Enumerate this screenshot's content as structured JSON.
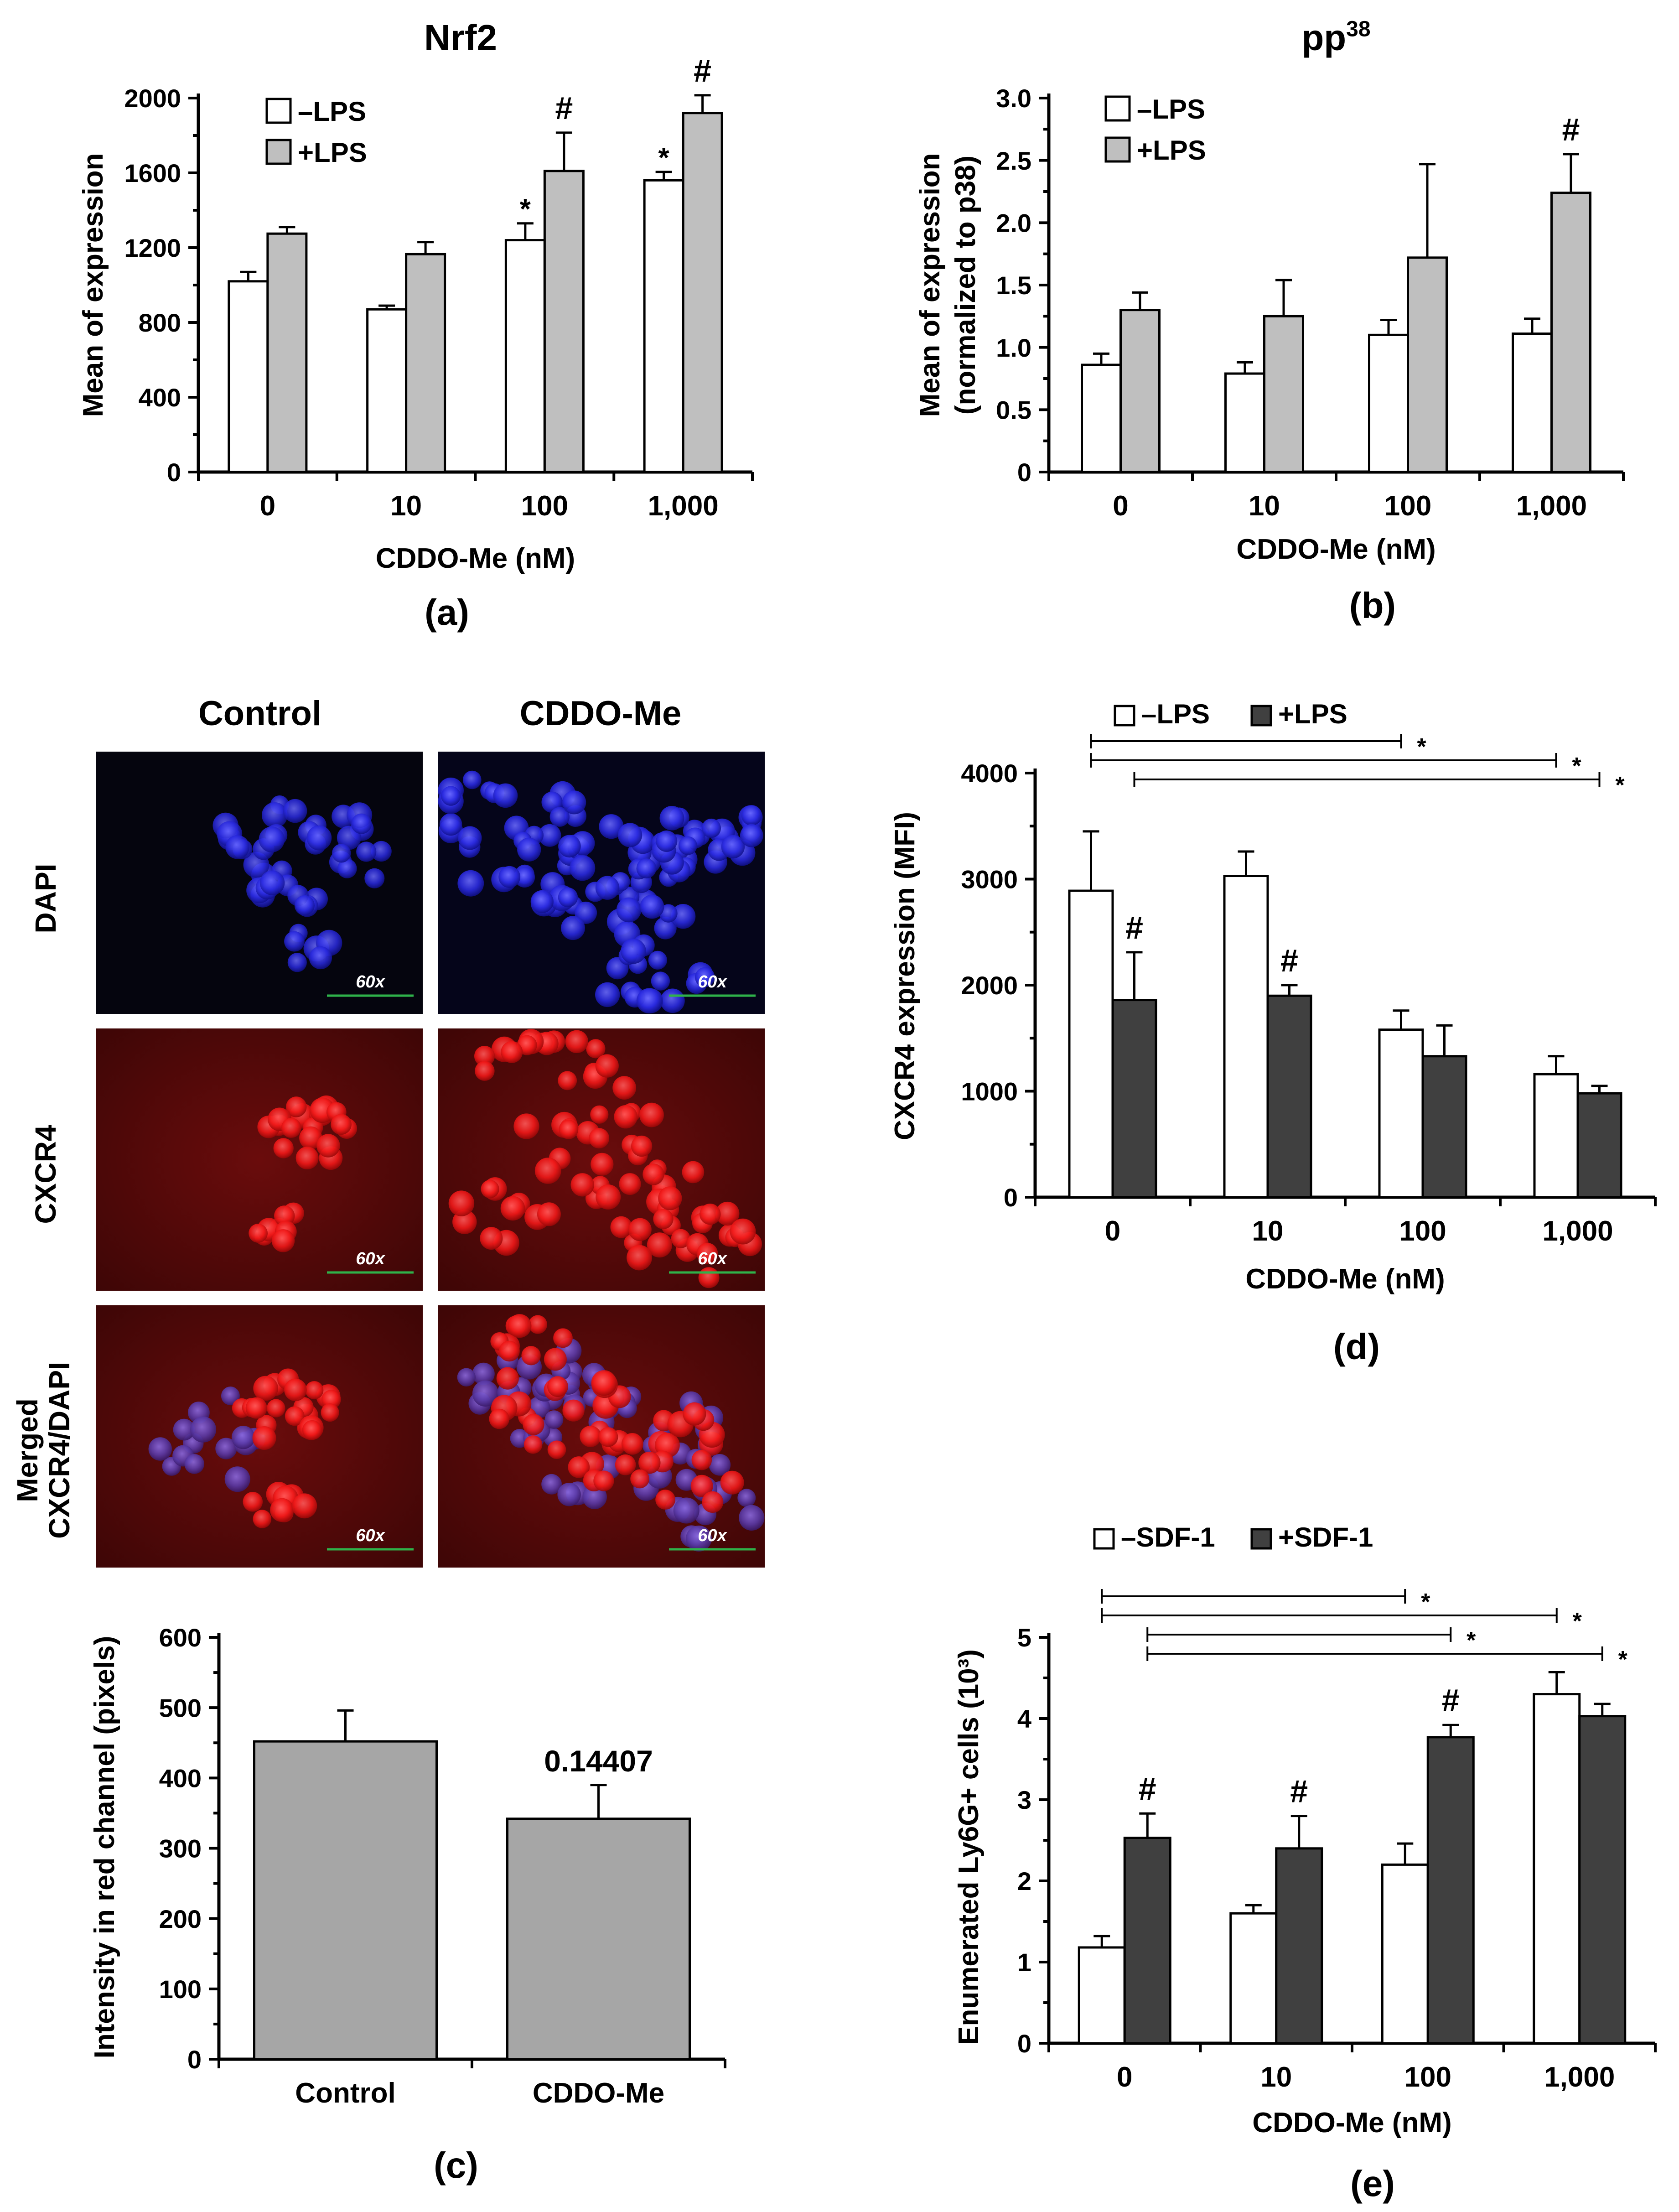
{
  "panels": [
    {
      "id": "a",
      "type": "bar",
      "panel_label": "(a)",
      "title": "Nrf2",
      "title_sup": "",
      "xlabel": "CDDO-Me (nM)",
      "ylabel": [
        "Mean of expression"
      ],
      "categories": [
        "0",
        "10",
        "100",
        "1,000"
      ],
      "yticks": [
        0,
        400,
        800,
        1200,
        1600,
        2000
      ],
      "ylim": [
        0,
        2000
      ],
      "legend": {
        "placement": "top-left",
        "style": "stacked"
      },
      "series": [
        {
          "name": "–LPS",
          "color": "#ffffff",
          "values": [
            1020,
            870,
            1240,
            1560
          ],
          "errors": [
            50,
            20,
            90,
            45
          ],
          "annotations": [
            "",
            "",
            "*",
            "*"
          ]
        },
        {
          "name": "+LPS",
          "color": "#bfbfbf",
          "values": [
            1275,
            1165,
            1610,
            1920
          ],
          "errors": [
            35,
            65,
            205,
            95
          ],
          "annotations": [
            "",
            "",
            "#",
            "#"
          ]
        }
      ]
    },
    {
      "id": "b",
      "type": "bar",
      "panel_label": "(b)",
      "title": "pp",
      "title_sup": "38",
      "xlabel": "CDDO-Me (nM)",
      "ylabel": [
        "Mean of expression",
        "(normalized to p38)"
      ],
      "categories": [
        "0",
        "10",
        "100",
        "1,000"
      ],
      "yticks": [
        0,
        0.5,
        1.0,
        1.5,
        2.0,
        2.5,
        3.0
      ],
      "ylim": [
        0,
        3.0
      ],
      "ytick_labels": [
        "0",
        "0.5",
        "1.0",
        "1.5",
        "2.0",
        "2.5",
        "3.0"
      ],
      "legend": {
        "placement": "top-left",
        "style": "stacked"
      },
      "series": [
        {
          "name": "–LPS",
          "color": "#ffffff",
          "values": [
            0.86,
            0.79,
            1.1,
            1.11
          ],
          "errors": [
            0.09,
            0.09,
            0.12,
            0.12
          ],
          "annotations": [
            "",
            "",
            "",
            ""
          ]
        },
        {
          "name": "+LPS",
          "color": "#bfbfbf",
          "values": [
            1.3,
            1.25,
            1.72,
            2.24
          ],
          "errors": [
            0.14,
            0.29,
            0.75,
            0.31
          ],
          "annotations": [
            "",
            "",
            "",
            "#"
          ]
        }
      ]
    },
    {
      "id": "c",
      "type": "bar",
      "panel_label": "(c)",
      "title": "",
      "title_sup": "",
      "xlabel": "",
      "ylabel": [
        "Intensity in red channel (pixels)"
      ],
      "categories": [
        "Control",
        "CDDO-Me"
      ],
      "yticks": [
        0,
        100,
        200,
        300,
        400,
        500,
        600
      ],
      "ylim": [
        0,
        600
      ],
      "legend": null,
      "series": [
        {
          "name": "",
          "color": "#a6a6a6",
          "values": [
            452,
            342
          ],
          "errors": [
            44,
            48
          ],
          "annotations": [
            "",
            "0.14407"
          ]
        }
      ]
    },
    {
      "id": "d",
      "type": "bar",
      "panel_label": "(d)",
      "title": "",
      "title_sup": "",
      "xlabel": "CDDO-Me (nM)",
      "ylabel": [
        "CXCR4 expression (MFI)"
      ],
      "categories": [
        "0",
        "10",
        "100",
        "1,000"
      ],
      "yticks": [
        0,
        1000,
        2000,
        3000,
        4000
      ],
      "ylim": [
        0,
        4000
      ],
      "legend": {
        "placement": "top",
        "style": "inline"
      },
      "series": [
        {
          "name": "–LPS",
          "color": "#ffffff",
          "values": [
            2890,
            3030,
            1580,
            1160
          ],
          "errors": [
            560,
            230,
            180,
            170
          ],
          "annotations": [
            "",
            "",
            "",
            ""
          ]
        },
        {
          "name": "+LPS",
          "color": "#404040",
          "values": [
            1860,
            1900,
            1330,
            980
          ],
          "errors": [
            450,
            100,
            290,
            70
          ],
          "annotations": [
            "#",
            "#",
            "",
            ""
          ]
        }
      ],
      "brackets": [
        {
          "from": [
            0,
            0
          ],
          "to": [
            2,
            0
          ],
          "label": "*"
        },
        {
          "from": [
            0,
            0
          ],
          "to": [
            3,
            0
          ],
          "label": "*"
        },
        {
          "from": [
            0,
            1
          ],
          "to": [
            3,
            1
          ],
          "label": "*"
        }
      ]
    },
    {
      "id": "e",
      "type": "bar",
      "panel_label": "(e)",
      "title": "",
      "title_sup": "",
      "xlabel": "CDDO-Me (nM)",
      "ylabel": [
        "Enumerated Ly6G+ cells (10³)"
      ],
      "categories": [
        "0",
        "10",
        "100",
        "1,000"
      ],
      "yticks": [
        0,
        1,
        2,
        3,
        4,
        5
      ],
      "ylim": [
        0,
        5
      ],
      "legend": {
        "placement": "top",
        "style": "inline"
      },
      "series": [
        {
          "name": "–SDF-1",
          "color": "#ffffff",
          "values": [
            1.18,
            1.6,
            2.2,
            4.3
          ],
          "errors": [
            0.14,
            0.1,
            0.26,
            0.27
          ],
          "annotations": [
            "",
            "",
            "",
            ""
          ]
        },
        {
          "name": "+SDF-1",
          "color": "#404040",
          "values": [
            2.53,
            2.4,
            3.77,
            4.03
          ],
          "errors": [
            0.3,
            0.4,
            0.15,
            0.15
          ],
          "annotations": [
            "#",
            "#",
            "#",
            ""
          ]
        }
      ],
      "brackets": [
        {
          "from": [
            0,
            0
          ],
          "to": [
            2,
            0
          ],
          "label": "*"
        },
        {
          "from": [
            0,
            0
          ],
          "to": [
            3,
            0
          ],
          "label": "*"
        },
        {
          "from": [
            0,
            1
          ],
          "to": [
            2,
            1
          ],
          "label": "*"
        },
        {
          "from": [
            0,
            1
          ],
          "to": [
            3,
            1
          ],
          "label": "*"
        }
      ]
    }
  ],
  "micrographs": {
    "column_labels": [
      "Control",
      "CDDO-Me"
    ],
    "row_labels": [
      [
        "DAPI"
      ],
      [
        "CXCR4"
      ],
      [
        "Merged",
        "CXCR4/DAPI"
      ]
    ],
    "row_colors": [
      "#1a1aa6",
      "#b3121a",
      "#6a2a8c"
    ],
    "magnification": "60x"
  }
}
